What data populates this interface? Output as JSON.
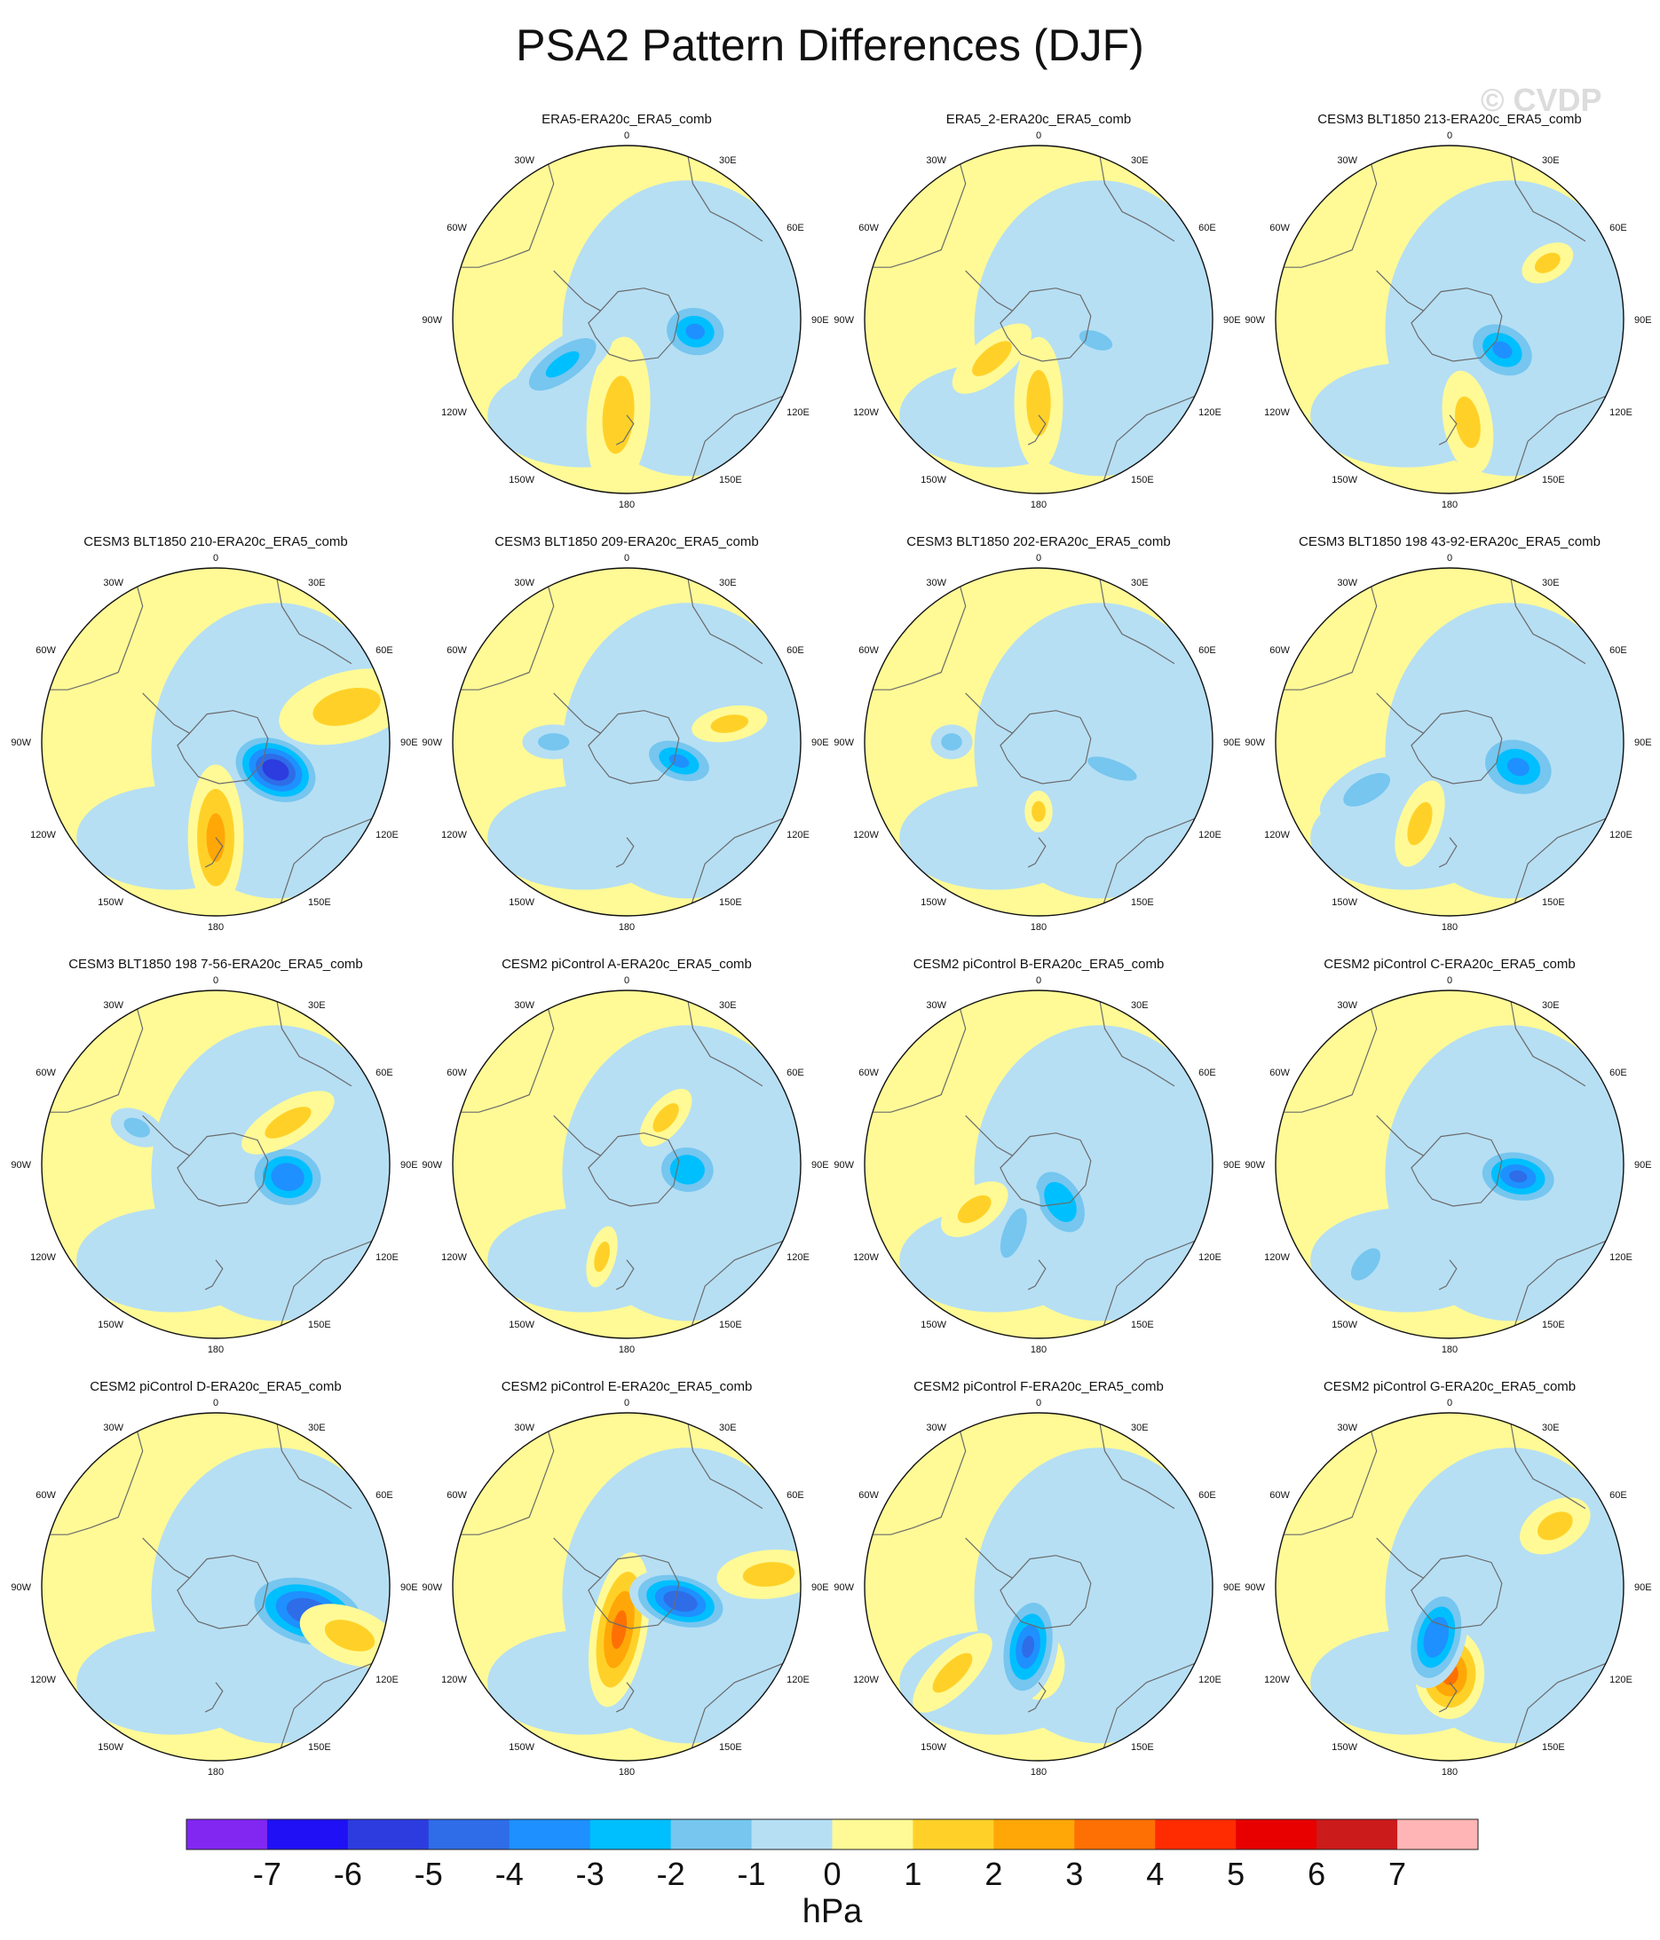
{
  "title": "PSA2 Pattern Differences (DJF)",
  "watermark": "© CVDP",
  "longitude_labels": [
    "0",
    "30E",
    "60E",
    "90E",
    "120E",
    "150E",
    "180",
    "150W",
    "120W",
    "90W",
    "60W",
    "30W"
  ],
  "panels": [
    {
      "title": "ERA5-ERA20c_ERA5_comb",
      "anomalies": [
        {
          "lon": 185,
          "r": 0.55,
          "value": 1.2,
          "major": 0.45,
          "minor": 0.18,
          "strength": 2
        },
        {
          "lon": 100,
          "r": 0.4,
          "value": -3.5,
          "major": 0.22,
          "minor": 0.18,
          "strength": 4
        },
        {
          "lon": 235,
          "r": 0.45,
          "value": -2.8,
          "major": 0.34,
          "minor": 0.14,
          "strength": 3
        }
      ]
    },
    {
      "title": "ERA5_2-ERA20c_ERA5_comb",
      "anomalies": [
        {
          "lon": 180,
          "r": 0.48,
          "value": 1.2,
          "major": 0.38,
          "minor": 0.14,
          "strength": 2
        },
        {
          "lon": 110,
          "r": 0.35,
          "value": -1.5,
          "major": 0.2,
          "minor": 0.1,
          "strength": 2
        },
        {
          "lon": 230,
          "r": 0.35,
          "value": 1.4,
          "major": 0.28,
          "minor": 0.12,
          "strength": 2
        }
      ]
    },
    {
      "title": "CESM3 BLT1850 213-ERA20c_ERA5_comb",
      "anomalies": [
        {
          "lon": 120,
          "r": 0.35,
          "value": -3.3,
          "major": 0.24,
          "minor": 0.18,
          "strength": 4
        },
        {
          "lon": 170,
          "r": 0.6,
          "value": 1.5,
          "major": 0.3,
          "minor": 0.14,
          "strength": 2
        },
        {
          "lon": 60,
          "r": 0.65,
          "value": 1.3,
          "major": 0.16,
          "minor": 0.1,
          "strength": 2
        }
      ]
    },
    {
      "title": "CESM3 BLT1850 210-ERA20c_ERA5_comb",
      "anomalies": [
        {
          "lon": 115,
          "r": 0.38,
          "value": -6.0,
          "major": 0.28,
          "minor": 0.2,
          "strength": 7
        },
        {
          "lon": 180,
          "r": 0.55,
          "value": 2.3,
          "major": 0.42,
          "minor": 0.16,
          "strength": 3
        },
        {
          "lon": 75,
          "r": 0.78,
          "value": 1.5,
          "major": 0.4,
          "minor": 0.2,
          "strength": 2
        }
      ]
    },
    {
      "title": "CESM3 BLT1850 209-ERA20c_ERA5_comb",
      "anomalies": [
        {
          "lon": 110,
          "r": 0.32,
          "value": -3.2,
          "major": 0.24,
          "minor": 0.14,
          "strength": 4
        },
        {
          "lon": 80,
          "r": 0.6,
          "value": 1.3,
          "major": 0.22,
          "minor": 0.1,
          "strength": 2
        },
        {
          "lon": 270,
          "r": 0.42,
          "value": -1.3,
          "major": 0.18,
          "minor": 0.1,
          "strength": 2
        }
      ]
    },
    {
      "title": "CESM3 BLT1850 202-ERA20c_ERA5_comb",
      "anomalies": [
        {
          "lon": 110,
          "r": 0.45,
          "value": -1.4,
          "major": 0.3,
          "minor": 0.1,
          "strength": 2
        },
        {
          "lon": 270,
          "r": 0.5,
          "value": -1.3,
          "major": 0.12,
          "minor": 0.1,
          "strength": 2
        },
        {
          "lon": 180,
          "r": 0.4,
          "value": 1.2,
          "major": 0.12,
          "minor": 0.08,
          "strength": 2
        }
      ]
    },
    {
      "title": "CESM3 BLT1850 198 43-92-ERA20c_ERA5_comb",
      "anomalies": [
        {
          "lon": 110,
          "r": 0.42,
          "value": -3.4,
          "major": 0.26,
          "minor": 0.2,
          "strength": 4
        },
        {
          "lon": 240,
          "r": 0.55,
          "value": -1.8,
          "major": 0.3,
          "minor": 0.14,
          "strength": 2
        },
        {
          "lon": 200,
          "r": 0.5,
          "value": 1.4,
          "major": 0.26,
          "minor": 0.12,
          "strength": 2
        }
      ]
    },
    {
      "title": "CESM3 BLT1850 198 7-56-ERA20c_ERA5_comb",
      "anomalies": [
        {
          "lon": 100,
          "r": 0.42,
          "value": -4.0,
          "major": 0.24,
          "minor": 0.2,
          "strength": 5
        },
        {
          "lon": 60,
          "r": 0.48,
          "value": 1.5,
          "major": 0.3,
          "minor": 0.12,
          "strength": 2
        },
        {
          "lon": 295,
          "r": 0.5,
          "value": -1.6,
          "major": 0.16,
          "minor": 0.1,
          "strength": 2
        }
      ]
    },
    {
      "title": "CESM2 piControl A-ERA20c_ERA5_comb",
      "anomalies": [
        {
          "lon": 95,
          "r": 0.35,
          "value": -3.0,
          "major": 0.2,
          "minor": 0.17,
          "strength": 4
        },
        {
          "lon": 40,
          "r": 0.35,
          "value": 1.6,
          "major": 0.2,
          "minor": 0.1,
          "strength": 2
        },
        {
          "lon": 195,
          "r": 0.55,
          "value": 1.4,
          "major": 0.18,
          "minor": 0.08,
          "strength": 2
        }
      ]
    },
    {
      "title": "CESM2 piControl B-ERA20c_ERA5_comb",
      "anomalies": [
        {
          "lon": 150,
          "r": 0.25,
          "value": -3.0,
          "major": 0.25,
          "minor": 0.16,
          "strength": 4
        },
        {
          "lon": 200,
          "r": 0.42,
          "value": -1.5,
          "major": 0.3,
          "minor": 0.12,
          "strength": 2
        },
        {
          "lon": 235,
          "r": 0.45,
          "value": 1.5,
          "major": 0.22,
          "minor": 0.12,
          "strength": 2
        }
      ]
    },
    {
      "title": "CESM2 piControl C-ERA20c_ERA5_comb",
      "anomalies": [
        {
          "lon": 100,
          "r": 0.4,
          "value": -4.5,
          "major": 0.26,
          "minor": 0.17,
          "strength": 5
        },
        {
          "lon": 220,
          "r": 0.75,
          "value": -1.8,
          "major": 0.22,
          "minor": 0.12,
          "strength": 2
        }
      ]
    },
    {
      "title": "CESM2 piControl D-ERA20c_ERA5_comb",
      "anomalies": [
        {
          "lon": 105,
          "r": 0.55,
          "value": -5.0,
          "major": 0.38,
          "minor": 0.22,
          "strength": 6
        },
        {
          "lon": 110,
          "r": 0.82,
          "value": 1.5,
          "major": 0.3,
          "minor": 0.16,
          "strength": 2
        }
      ]
    },
    {
      "title": "CESM2 piControl E-ERA20c_ERA5_comb",
      "anomalies": [
        {
          "lon": 190,
          "r": 0.25,
          "value": 3.0,
          "major": 0.45,
          "minor": 0.16,
          "strength": 4
        },
        {
          "lon": 105,
          "r": 0.32,
          "value": -5.0,
          "major": 0.3,
          "minor": 0.17,
          "strength": 6
        },
        {
          "lon": 85,
          "r": 0.82,
          "value": 1.5,
          "major": 0.3,
          "minor": 0.14,
          "strength": 2
        }
      ]
    },
    {
      "title": "CESM2 piControl F-ERA20c_ERA5_comb",
      "anomalies": [
        {
          "lon": 180,
          "r": 0.45,
          "value": 1.8,
          "major": 0.2,
          "minor": 0.15,
          "strength": 2
        },
        {
          "lon": 190,
          "r": 0.35,
          "value": -4.5,
          "major": 0.32,
          "minor": 0.17,
          "strength": 5
        },
        {
          "lon": 225,
          "r": 0.7,
          "value": 1.5,
          "major": 0.3,
          "minor": 0.12,
          "strength": 2
        }
      ]
    },
    {
      "title": "CESM2 piControl G-ERA20c_ERA5_comb",
      "anomalies": [
        {
          "lon": 180,
          "r": 0.5,
          "value": 3.3,
          "major": 0.26,
          "minor": 0.2,
          "strength": 4
        },
        {
          "lon": 195,
          "r": 0.3,
          "value": -4.0,
          "major": 0.3,
          "minor": 0.17,
          "strength": 5
        },
        {
          "lon": 60,
          "r": 0.7,
          "value": 1.5,
          "major": 0.22,
          "minor": 0.14,
          "strength": 2
        }
      ]
    }
  ],
  "colorbar": {
    "colors": [
      "#8227f2",
      "#1f10f5",
      "#2c3cdf",
      "#2e6de7",
      "#1e90ff",
      "#00bfff",
      "#76c6ef",
      "#b6dff4",
      "#fffa96",
      "#ffd128",
      "#ffa707",
      "#fe7003",
      "#ff2c01",
      "#e80000",
      "#cc1b1b",
      "#ffb5b5"
    ],
    "levels": [
      "-7",
      "-6",
      "-5",
      "-4",
      "-3",
      "-2",
      "-1",
      "0",
      "1",
      "2",
      "3",
      "4",
      "5",
      "6",
      "7"
    ],
    "units": "hPa"
  }
}
